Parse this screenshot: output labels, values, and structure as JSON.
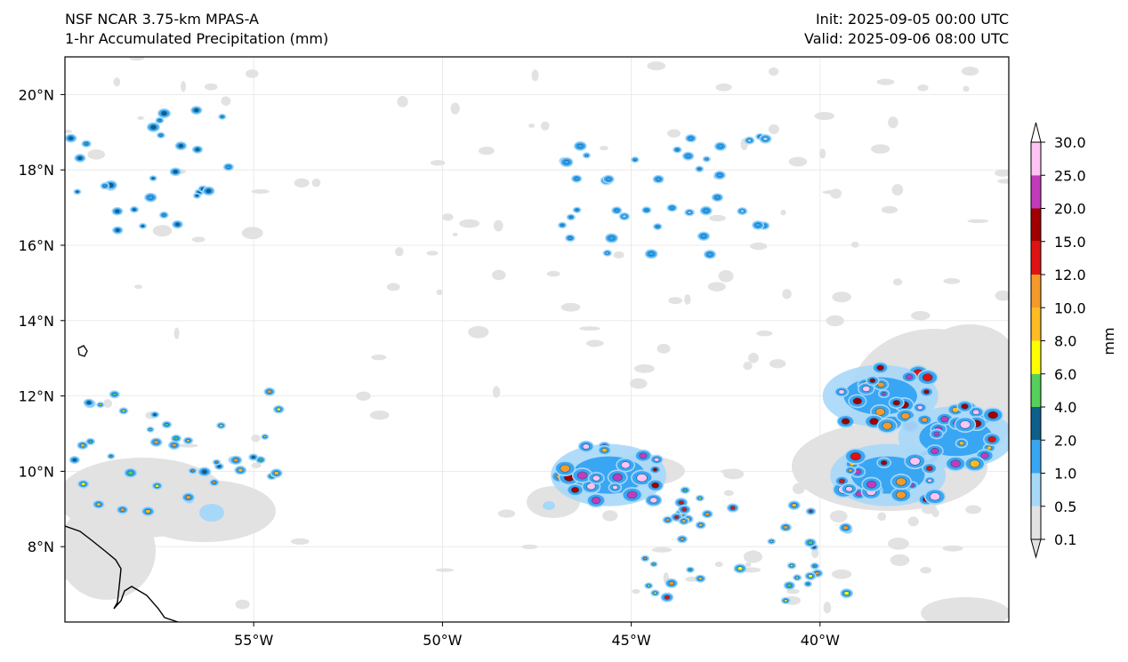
{
  "header": {
    "model": "NSF NCAR 3.75-km MPAS-A",
    "field": "1-hr Accumulated Precipitation (mm)",
    "init": "Init: 2025-09-05 00:00 UTC",
    "valid": "Valid: 2025-09-06 08:00 UTC"
  },
  "map": {
    "lon_range": [
      -60,
      -35
    ],
    "lat_range": [
      6,
      21
    ],
    "lat_ticks": [
      "20°N",
      "18°N",
      "16°N",
      "14°N",
      "12°N",
      "10°N",
      "8°N"
    ],
    "lat_tick_values": [
      20,
      18,
      16,
      14,
      12,
      10,
      8
    ],
    "lon_ticks": [
      "55°W",
      "50°W",
      "45°W",
      "40°W"
    ],
    "lon_tick_values": [
      -55,
      -50,
      -45,
      -40
    ],
    "gridlines": true
  },
  "colorbar": {
    "unit": "mm",
    "levels": [
      "0.1",
      "0.5",
      "1.0",
      "2.0",
      "4.0",
      "6.0",
      "8.0",
      "10.0",
      "12.0",
      "15.0",
      "20.0",
      "25.0",
      "30.0"
    ],
    "colors": [
      "#e2e2e2",
      "#a8d8f8",
      "#39a6f3",
      "#0f5f8a",
      "#55d05a",
      "#ffff00",
      "#ffbb22",
      "#f39a2a",
      "#dd1313",
      "#a10000",
      "#c23bbb",
      "#ffc3f4"
    ],
    "extend": "both"
  },
  "precip_features": {
    "clusters": [
      {
        "lon": -58.4,
        "lat": 18.0,
        "class": "scattered",
        "peak_mm": 4.0
      },
      {
        "lon": -57.0,
        "lat": 10.5,
        "class": "scattered",
        "peak_mm": 12.0
      },
      {
        "lon": -44.0,
        "lat": 17.3,
        "class": "scattered",
        "peak_mm": 2.0
      },
      {
        "lon": -45.6,
        "lat": 9.9,
        "class": "intense",
        "peak_mm": 30.0
      },
      {
        "lon": -38.4,
        "lat": 12.0,
        "class": "intense",
        "peak_mm": 30.0
      },
      {
        "lon": -36.4,
        "lat": 10.9,
        "class": "intense",
        "peak_mm": 30.0
      },
      {
        "lon": -38.2,
        "lat": 9.9,
        "class": "intense",
        "peak_mm": 30.0
      },
      {
        "lon": -42.0,
        "lat": 7.9,
        "class": "scattered",
        "peak_mm": 15.0
      }
    ]
  }
}
